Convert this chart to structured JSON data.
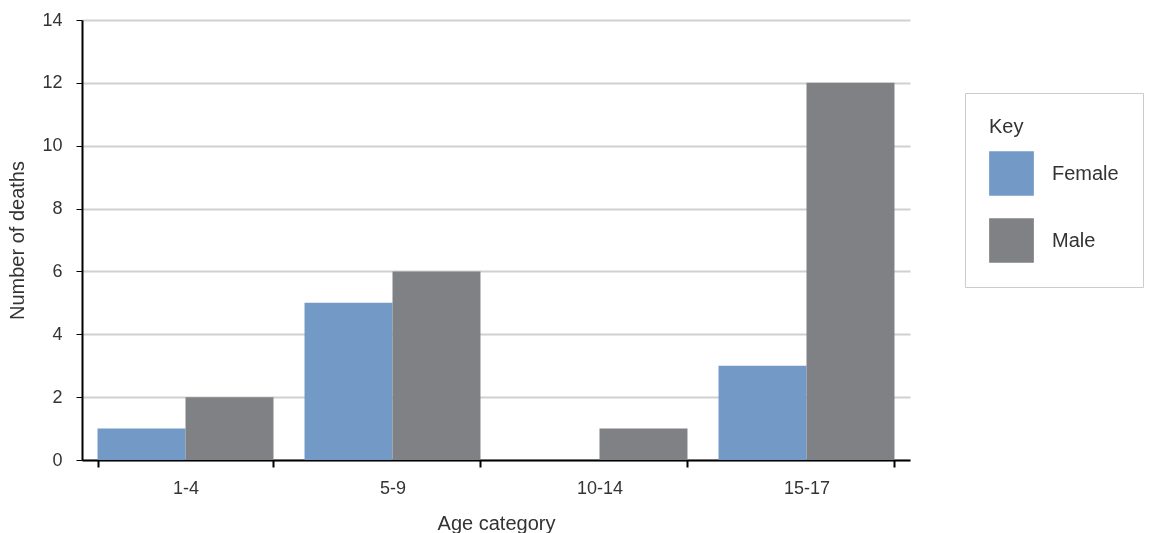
{
  "chart_data": {
    "type": "bar",
    "xlabel": "Age category",
    "ylabel": "Number of deaths",
    "legend_title": "Key",
    "categories": [
      "1-4",
      "5-9",
      "10-14",
      "15-17"
    ],
    "series": [
      {
        "name": "Female",
        "color": "#7399c6",
        "values": [
          1,
          5,
          0,
          3
        ]
      },
      {
        "name": "Male",
        "color": "#808184",
        "values": [
          2,
          6,
          1,
          12
        ]
      }
    ],
    "ylim": [
      0,
      14
    ],
    "yticks": [
      0,
      2,
      4,
      6,
      8,
      10,
      12,
      14
    ],
    "grid": "y",
    "legend": "right"
  }
}
